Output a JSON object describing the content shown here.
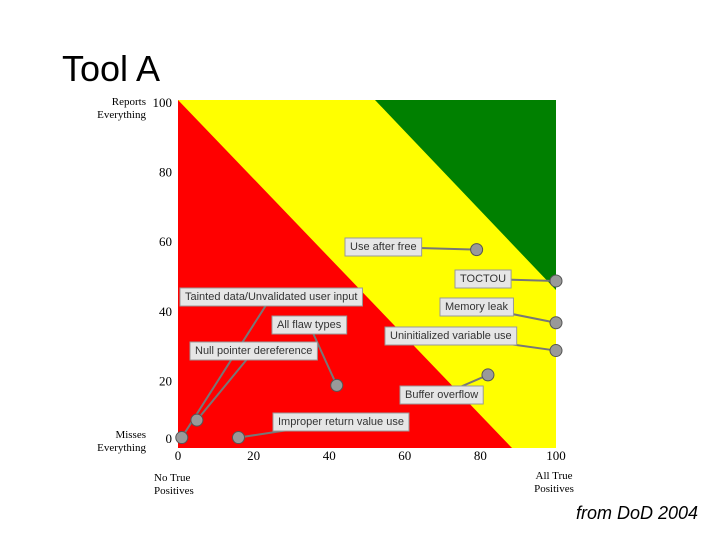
{
  "chart_data": {
    "type": "scatter",
    "title": "Tool A",
    "y_top_label": "Reports Everything",
    "y_bottom_label": "Misses Everything",
    "x_left_label": "No True Positives",
    "x_right_label": "All True Positives",
    "source": "from DoD 2004",
    "xlim": [
      0,
      100
    ],
    "ylim": [
      0,
      100
    ],
    "xticks": [
      0,
      20,
      40,
      60,
      80,
      100
    ],
    "yticks": [
      0,
      20,
      40,
      60,
      80,
      100
    ],
    "point_color": "#999999",
    "points": [
      {
        "label": "Use after free",
        "x": 79,
        "y": 57
      },
      {
        "label": "TOCTOU",
        "x": 100,
        "y": 48
      },
      {
        "label": "Tainted data/Unvalidated user input",
        "x": 1,
        "y": 3
      },
      {
        "label": "Memory leak",
        "x": 100,
        "y": 36
      },
      {
        "label": "All flaw types",
        "x": 42,
        "y": 18
      },
      {
        "label": "Uninitialized variable use",
        "x": 100,
        "y": 28
      },
      {
        "label": "Null pointer dereference",
        "x": 5,
        "y": 8
      },
      {
        "label": "Buffer overflow",
        "x": 82,
        "y": 21
      },
      {
        "label": "Improper return value use",
        "x": 16,
        "y": 3
      }
    ]
  }
}
